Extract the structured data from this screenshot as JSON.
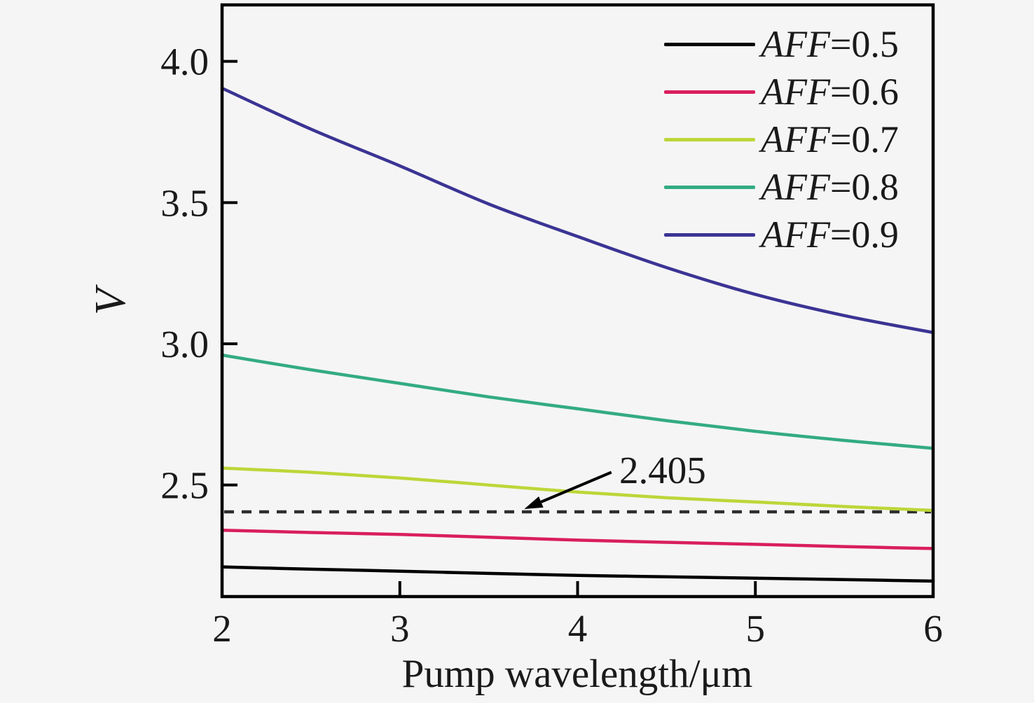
{
  "figure": {
    "background": "#f5f5f5",
    "axis_color": "#000000",
    "text_color": "#1a1a1a",
    "reference_line_color": "#2e2e2e"
  },
  "chart_data": {
    "type": "line",
    "title": "",
    "xlabel": "Pump wavelength/μm",
    "ylabel": "V",
    "xlim": [
      2,
      6
    ],
    "ylim": [
      2.105,
      4.2
    ],
    "grid": false,
    "legend_position": "top-right",
    "xticks": [
      2,
      3,
      4,
      5,
      6
    ],
    "xtick_labels": [
      "2",
      "3",
      "4",
      "5",
      "6"
    ],
    "yticks": [
      2.5,
      3.0,
      3.5,
      4.0
    ],
    "ytick_labels": [
      "2.5",
      "3.0",
      "3.5",
      "4.0"
    ],
    "x": [
      2,
      2.5,
      3,
      3.5,
      4,
      4.5,
      5,
      5.5,
      6
    ],
    "series": [
      {
        "name": "AFF=0.5",
        "color": "#000000",
        "values": [
          2.21,
          2.202,
          2.195,
          2.187,
          2.18,
          2.175,
          2.17,
          2.165,
          2.16
        ]
      },
      {
        "name": "AFF=0.6",
        "color": "#d91e5e",
        "values": [
          2.34,
          2.332,
          2.325,
          2.315,
          2.305,
          2.297,
          2.29,
          2.282,
          2.275
        ]
      },
      {
        "name": "AFF=0.7",
        "color": "#bdd639",
        "values": [
          2.56,
          2.545,
          2.525,
          2.5,
          2.475,
          2.455,
          2.44,
          2.424,
          2.41
        ]
      },
      {
        "name": "AFF=0.8",
        "color": "#33ab83",
        "values": [
          2.96,
          2.908,
          2.86,
          2.812,
          2.77,
          2.728,
          2.69,
          2.658,
          2.63
        ]
      },
      {
        "name": "AFF=0.9",
        "color": "#3b3494",
        "values": [
          3.905,
          3.76,
          3.63,
          3.495,
          3.38,
          3.27,
          3.175,
          3.1,
          3.04
        ]
      }
    ],
    "legend": [
      {
        "name": "AFF",
        "value": "=0.5"
      },
      {
        "name": "AFF",
        "value": "=0.6"
      },
      {
        "name": "AFF",
        "value": "=0.7"
      },
      {
        "name": "AFF",
        "value": "=0.8"
      },
      {
        "name": "AFF",
        "value": "=0.9"
      }
    ],
    "reference_line": {
      "y": 2.405,
      "style": "dashed"
    },
    "annotation": {
      "label": "2.405",
      "points_to": {
        "x": 3.7,
        "y": 2.415
      },
      "text_at": {
        "x": 4.19,
        "y": 2.545
      }
    }
  }
}
